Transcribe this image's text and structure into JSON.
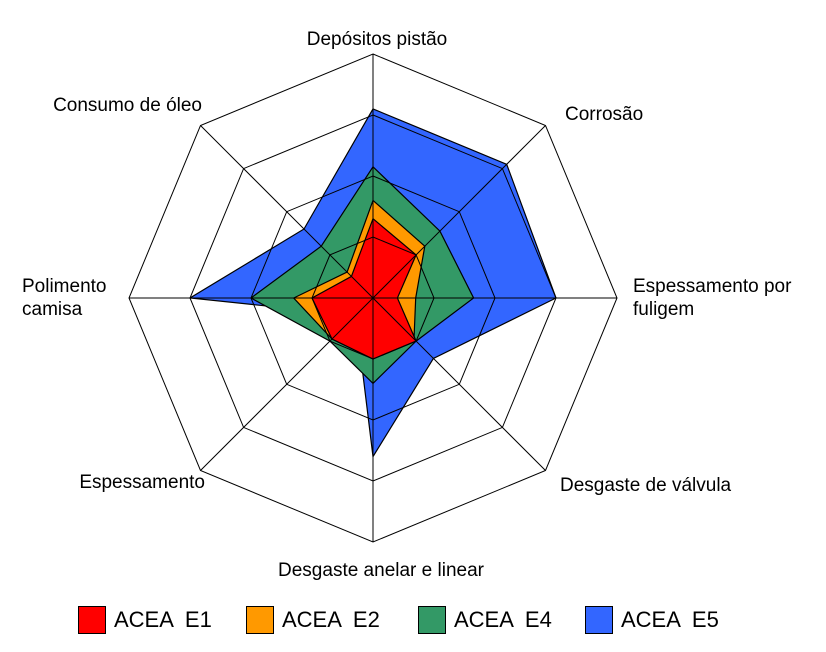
{
  "chart_data": {
    "type": "radar",
    "categories": [
      "Depósitos pistão",
      "Corrosão",
      "Espessamento por fuligem",
      "Desgaste de válvula",
      "Desgaste anelar  e linear",
      "Espessamento",
      "Polimento camisa",
      "Consumo de óleo"
    ],
    "category_lines": [
      [
        "Depósitos pistão"
      ],
      [
        "Corrosão"
      ],
      [
        "Espessamento por",
        "fuligem"
      ],
      [
        "Desgaste de válvula"
      ],
      [
        "Desgaste anelar  e linear"
      ],
      [
        "Espessamento"
      ],
      [
        "Polimento",
        "camisa"
      ],
      [
        "Consumo de óleo"
      ]
    ],
    "rlim": [
      0,
      4
    ],
    "grid_rings": 4,
    "grid_shape": "octagon",
    "gridlines": true,
    "legend_position": "bottom",
    "series": [
      {
        "name": "ACEA  E5",
        "color": "#3366FF",
        "values": [
          3.1,
          3.1,
          3.0,
          1.4,
          2.6,
          0.4,
          3.0,
          1.6
        ]
      },
      {
        "name": "ACEA  E4",
        "color": "#339966",
        "values": [
          2.15,
          1.55,
          1.65,
          1.0,
          1.4,
          1.0,
          2.0,
          1.2
        ]
      },
      {
        "name": "ACEA  E2",
        "color": "#FF9900",
        "values": [
          1.6,
          1.2,
          0.7,
          0.95,
          1.0,
          0.95,
          1.3,
          0.6
        ]
      },
      {
        "name": "ACEA  E1",
        "color": "#FF0000",
        "values": [
          1.3,
          1.0,
          0.4,
          1.0,
          1.0,
          0.95,
          1.0,
          0.5
        ]
      }
    ]
  }
}
